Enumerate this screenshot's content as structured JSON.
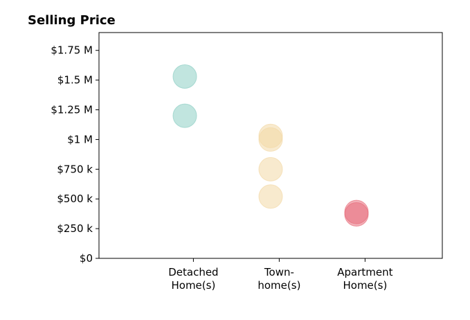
{
  "chart_data": {
    "type": "scatter",
    "title": "Selling Price",
    "xlabel": "",
    "ylabel": "",
    "categories": [
      [
        "Detached",
        "Home(s)"
      ],
      [
        "Town-",
        "home(s)"
      ],
      [
        "Apartment",
        "Home(s)"
      ]
    ],
    "xlim": [
      -0.1,
      3.9
    ],
    "ylim": [
      0,
      1900000
    ],
    "y_ticks": [
      {
        "value": 0,
        "label": "$0"
      },
      {
        "value": 250000,
        "label": "$250 k"
      },
      {
        "value": 500000,
        "label": "$500 k"
      },
      {
        "value": 750000,
        "label": "$750 k"
      },
      {
        "value": 1000000,
        "label": "$1 M"
      },
      {
        "value": 1250000,
        "label": "$1.25 M"
      },
      {
        "value": 1500000,
        "label": "$1.5 M"
      },
      {
        "value": 1750000,
        "label": "$1.75 M"
      }
    ],
    "series": [
      {
        "color": "#8ecfc5",
        "points": [
          {
            "x": 0.9,
            "y": 1530000
          },
          {
            "x": 0.9,
            "y": 1200000
          }
        ]
      },
      {
        "color": "#f2d9a6",
        "points": [
          {
            "x": 1.9,
            "y": 1030000
          },
          {
            "x": 1.9,
            "y": 1000000
          },
          {
            "x": 1.9,
            "y": 750000
          },
          {
            "x": 1.9,
            "y": 520000
          }
        ]
      },
      {
        "color": "#e8707e",
        "points": [
          {
            "x": 2.9,
            "y": 390000
          },
          {
            "x": 2.9,
            "y": 370000
          }
        ]
      }
    ],
    "grid": false,
    "legend": "none"
  }
}
